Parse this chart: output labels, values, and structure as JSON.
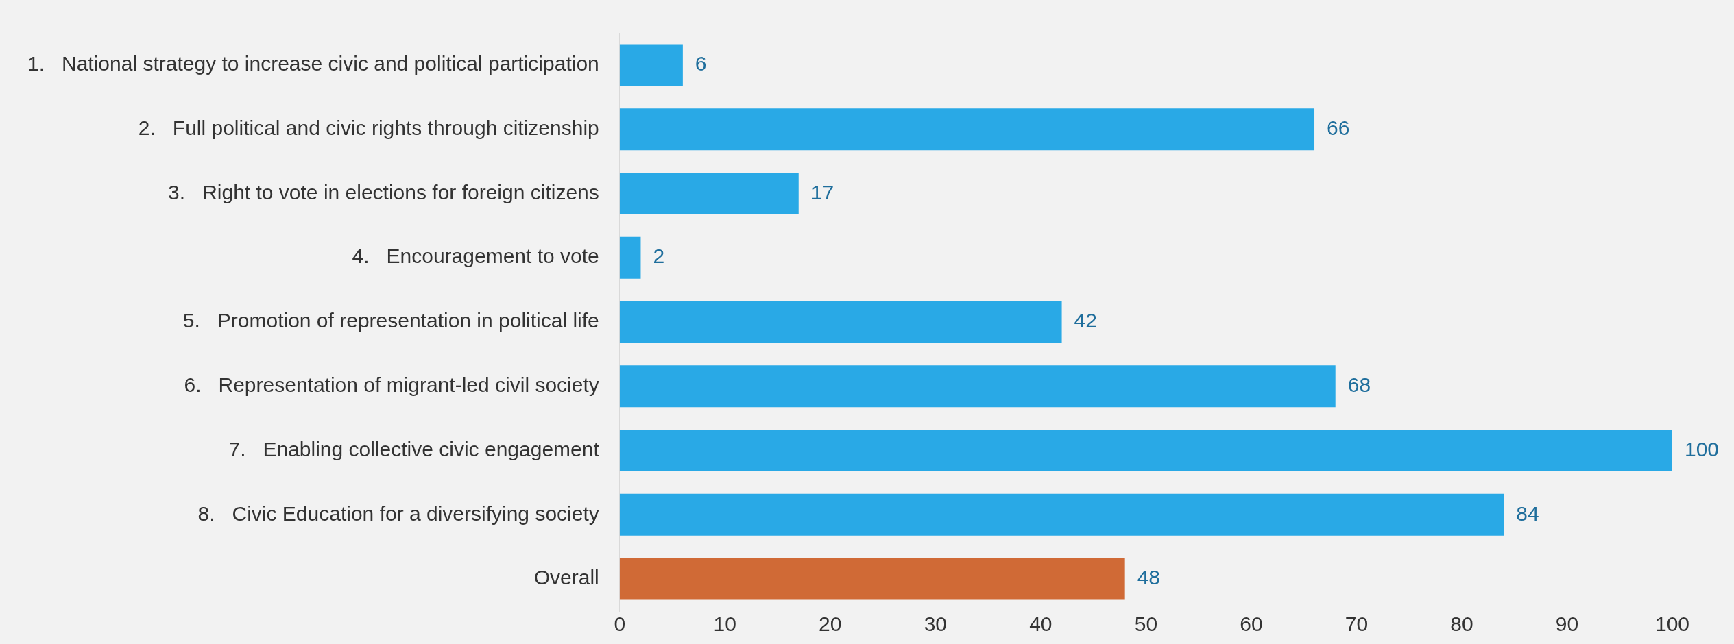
{
  "chart_data": {
    "type": "bar",
    "orientation": "horizontal",
    "categories": [
      "1.   National strategy to increase civic and political participation",
      "2.   Full political and civic rights through citizenship",
      "3.   Right to vote in elections for foreign citizens",
      "4.   Encouragement to vote",
      "5.   Promotion of representation in political life",
      "6.   Representation of migrant-led civil society",
      "7.   Enabling collective civic engagement",
      "8.   Civic Education for a diversifying society",
      "Overall"
    ],
    "values": [
      6,
      66,
      17,
      2,
      42,
      68,
      100,
      84,
      48
    ],
    "colors": [
      "#29a9e6",
      "#29a9e6",
      "#29a9e6",
      "#29a9e6",
      "#29a9e6",
      "#29a9e6",
      "#29a9e6",
      "#29a9e6",
      "#d06a36"
    ],
    "xlim": [
      0,
      100
    ],
    "xticks": [
      0,
      10,
      20,
      30,
      40,
      50,
      60,
      70,
      80,
      90,
      100
    ],
    "data_labels": true,
    "grid": false,
    "legend": false
  }
}
